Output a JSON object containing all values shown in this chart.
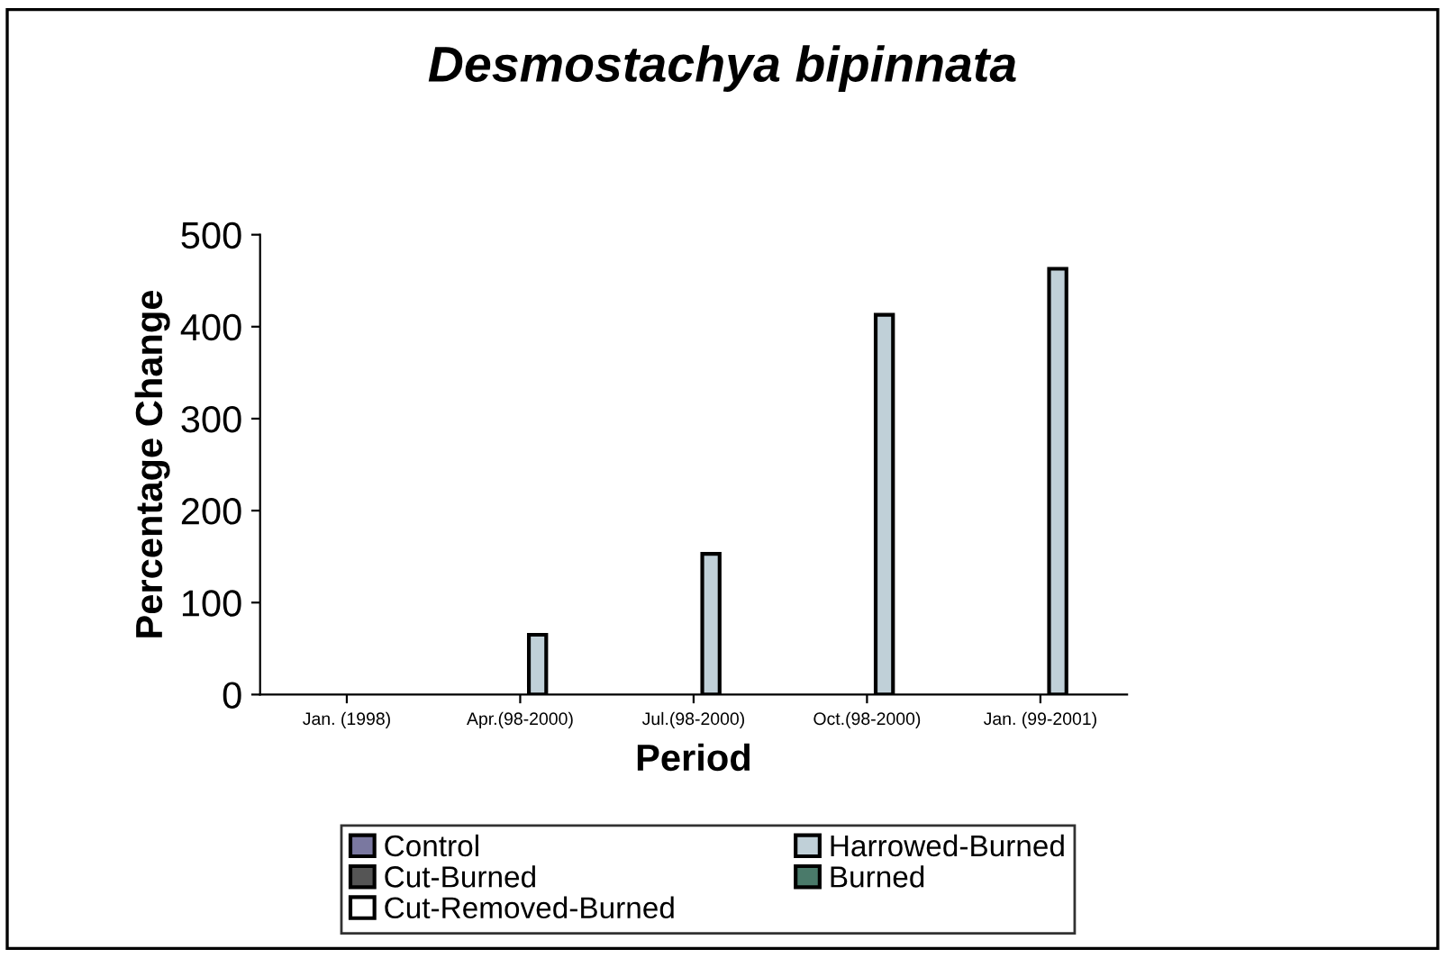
{
  "chart_data": {
    "type": "bar",
    "title": "Desmostachya bipinnata",
    "xlabel": "Period",
    "ylabel": "Percentage Change",
    "categories": [
      "Jan. (1998)",
      "Apr.(98-2000)",
      "Jul.(98-2000)",
      "Oct.(98-2000)",
      "Jan. (99-2001)"
    ],
    "series": [
      {
        "name": "Control",
        "color": "#7a78a0",
        "values": [
          null,
          null,
          null,
          null,
          null
        ]
      },
      {
        "name": "Cut-Burned",
        "color": "#555555",
        "values": [
          null,
          null,
          null,
          null,
          null
        ]
      },
      {
        "name": "Cut-Removed-Burned",
        "color": "#ffffff",
        "values": [
          null,
          null,
          null,
          null,
          null
        ]
      },
      {
        "name": "Harrowed-Burned",
        "color": "#c0d0d8",
        "values": [
          null,
          65,
          153,
          413,
          463
        ]
      },
      {
        "name": "Burned",
        "color": "#4a7a6a",
        "values": [
          null,
          null,
          null,
          null,
          null
        ]
      }
    ],
    "ylim": [
      0,
      500
    ],
    "yticks": [
      0,
      100,
      200,
      300,
      400,
      500
    ],
    "grid": false,
    "legend": "bottom"
  }
}
